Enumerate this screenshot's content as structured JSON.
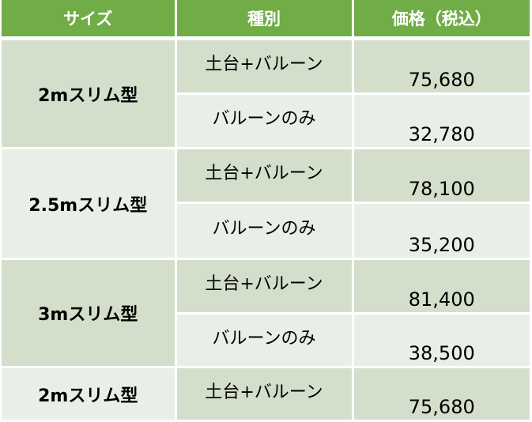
{
  "header": {
    "size": "サイズ",
    "type": "種別",
    "price": "価格（税込）"
  },
  "groups": [
    {
      "size": "2mスリム型",
      "rows": [
        {
          "type": "土台+バルーン",
          "price": "75,680"
        },
        {
          "type": "バルーンのみ",
          "price": "32,780"
        }
      ]
    },
    {
      "size": "2.5mスリム型",
      "rows": [
        {
          "type": "土台+バルーン",
          "price": "78,100"
        },
        {
          "type": "バルーンのみ",
          "price": "35,200"
        }
      ]
    },
    {
      "size": "3mスリム型",
      "rows": [
        {
          "type": "土台+バルーン",
          "price": "81,400"
        },
        {
          "type": "バルーンのみ",
          "price": "38,500"
        }
      ]
    },
    {
      "size": "2mスリム型",
      "rows": [
        {
          "type": "土台+バルーン",
          "price": "75,680"
        }
      ]
    }
  ],
  "colors": {
    "header_bg": "#70ad47",
    "row_dark": "#d3dfcb",
    "row_light": "#e9efe6"
  }
}
